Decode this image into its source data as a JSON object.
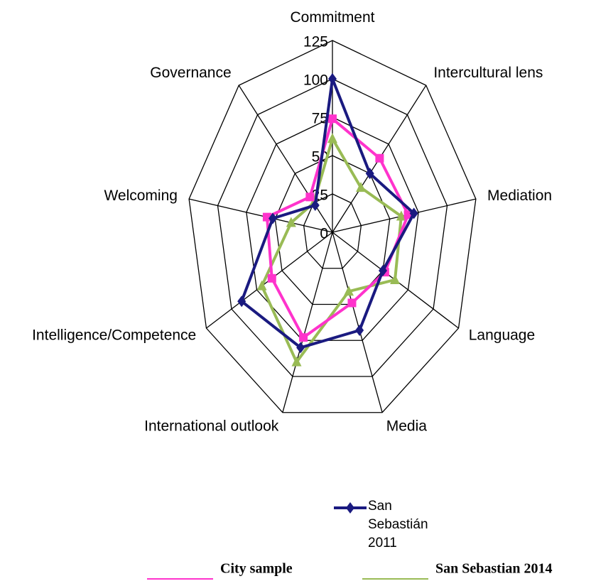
{
  "chart_data": {
    "type": "radar",
    "categories": [
      "Commitment",
      "Intercultural lens",
      "Mediation",
      "Language",
      "Media",
      "International outlook",
      "Intelligence/Competence",
      "Welcoming",
      "Governance"
    ],
    "ylim": [
      0,
      125
    ],
    "yticks": [
      0,
      25,
      50,
      75,
      100,
      125
    ],
    "grid": true,
    "series": [
      {
        "name": "San Sebastián 2011",
        "color": "#1a1a80",
        "marker": "diamond",
        "values": [
          100,
          50,
          71,
          50,
          68,
          80,
          90,
          52,
          23
        ]
      },
      {
        "name": "City sample",
        "color": "#ff33cc",
        "marker": "square",
        "values": [
          74,
          63,
          66,
          52,
          49,
          73,
          60,
          57,
          30
        ]
      },
      {
        "name": "San Sebastian 2014",
        "color": "#99bb55",
        "marker": "triangle",
        "values": [
          61,
          38,
          60,
          62,
          41,
          90,
          70,
          36,
          25
        ]
      }
    ]
  }
}
